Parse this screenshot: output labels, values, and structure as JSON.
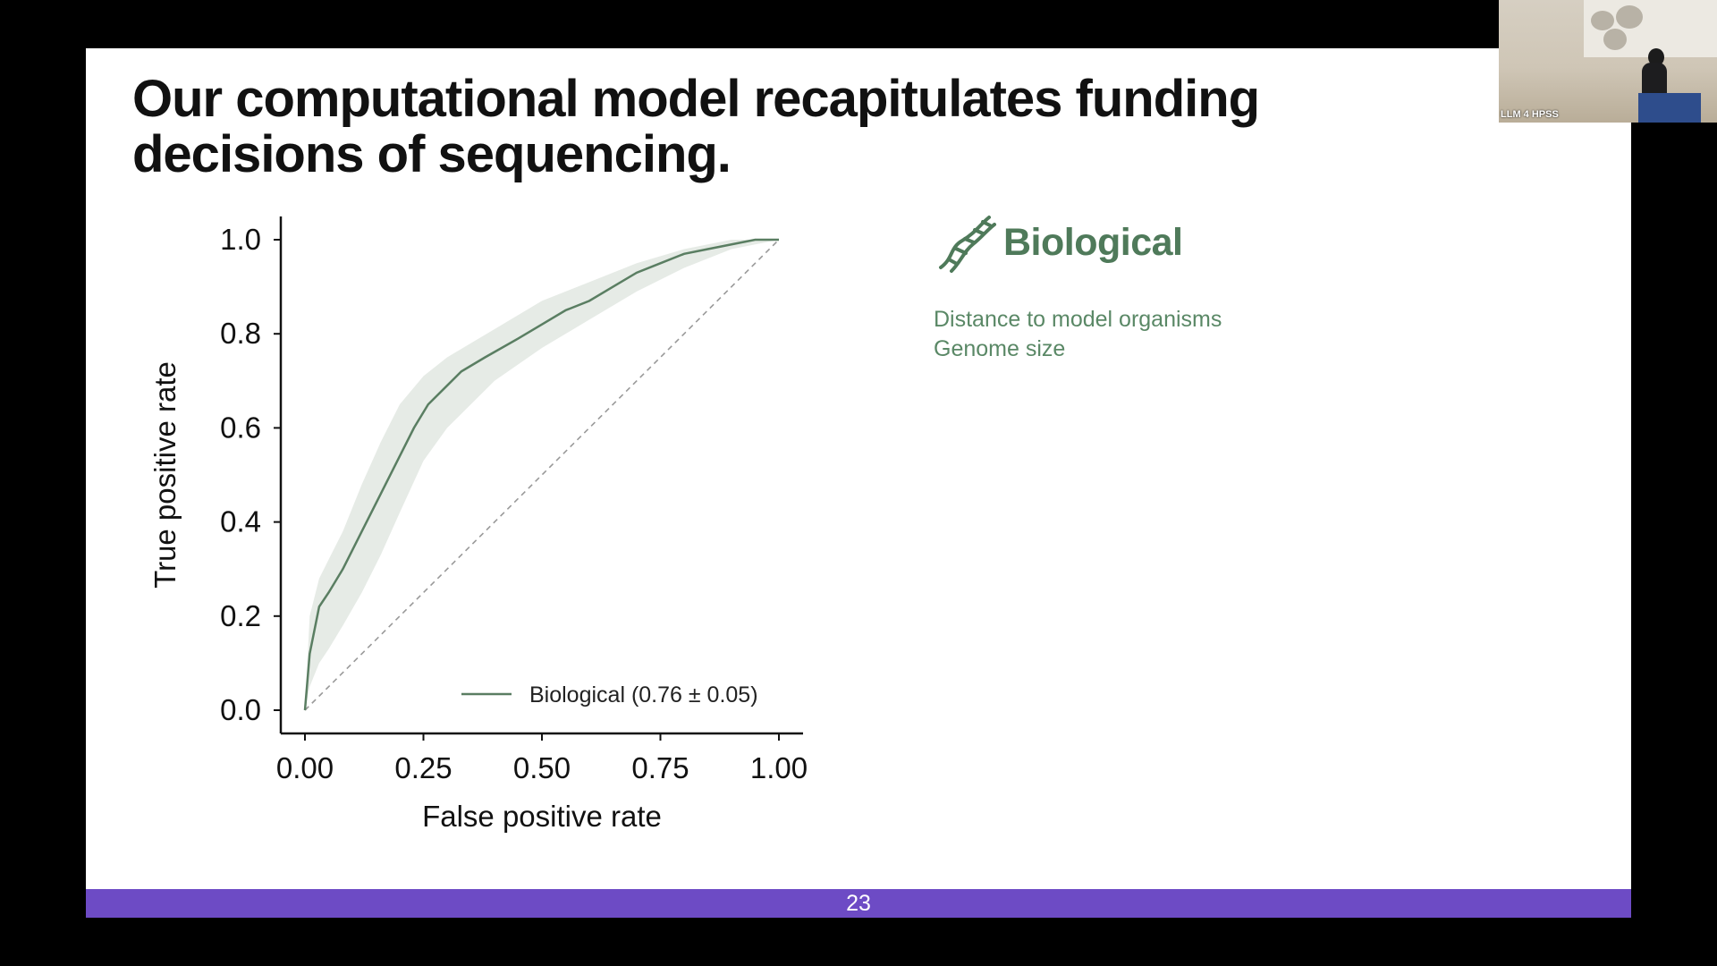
{
  "slide": {
    "title": "Our computational model recapitulates funding decisions of sequencing.",
    "page_number": "23"
  },
  "biological_panel": {
    "icon": "dna-icon",
    "title": "Biological",
    "features": [
      "Distance to model organisms",
      "Genome size"
    ]
  },
  "video_overlay": {
    "label": "LLM 4 HPSS"
  },
  "colors": {
    "accent_bar": "#6d4bc5",
    "curve": "#5a7e62",
    "band": "#e6ebe6",
    "biological_text": "#4f7a5a"
  },
  "chart_data": {
    "type": "line",
    "title": "",
    "xlabel": "False positive rate",
    "ylabel": "True positive rate",
    "xlim": [
      0,
      1
    ],
    "ylim": [
      0,
      1
    ],
    "x_ticks": [
      "0.00",
      "0.25",
      "0.50",
      "0.75",
      "1.00"
    ],
    "y_ticks": [
      "0.0",
      "0.2",
      "0.4",
      "0.6",
      "0.8",
      "1.0"
    ],
    "legend": {
      "placement": "bottom-right"
    },
    "series": [
      {
        "name": "Biological (0.76 ± 0.05)",
        "points": [
          [
            0.0,
            0.0
          ],
          [
            0.01,
            0.12
          ],
          [
            0.02,
            0.17
          ],
          [
            0.03,
            0.22
          ],
          [
            0.05,
            0.25
          ],
          [
            0.08,
            0.3
          ],
          [
            0.12,
            0.38
          ],
          [
            0.16,
            0.46
          ],
          [
            0.2,
            0.54
          ],
          [
            0.23,
            0.6
          ],
          [
            0.26,
            0.65
          ],
          [
            0.3,
            0.69
          ],
          [
            0.33,
            0.72
          ],
          [
            0.38,
            0.75
          ],
          [
            0.45,
            0.79
          ],
          [
            0.5,
            0.82
          ],
          [
            0.55,
            0.85
          ],
          [
            0.6,
            0.87
          ],
          [
            0.65,
            0.9
          ],
          [
            0.7,
            0.93
          ],
          [
            0.75,
            0.95
          ],
          [
            0.8,
            0.97
          ],
          [
            0.85,
            0.98
          ],
          [
            0.9,
            0.99
          ],
          [
            0.95,
            1.0
          ],
          [
            1.0,
            1.0
          ]
        ],
        "band": {
          "upper": [
            [
              0.0,
              0.0
            ],
            [
              0.01,
              0.2
            ],
            [
              0.03,
              0.28
            ],
            [
              0.05,
              0.32
            ],
            [
              0.08,
              0.38
            ],
            [
              0.12,
              0.48
            ],
            [
              0.16,
              0.57
            ],
            [
              0.2,
              0.65
            ],
            [
              0.25,
              0.71
            ],
            [
              0.3,
              0.75
            ],
            [
              0.4,
              0.81
            ],
            [
              0.5,
              0.87
            ],
            [
              0.6,
              0.91
            ],
            [
              0.7,
              0.95
            ],
            [
              0.8,
              0.98
            ],
            [
              0.9,
              1.0
            ],
            [
              1.0,
              1.0
            ]
          ],
          "lower": [
            [
              0.0,
              0.0
            ],
            [
              0.01,
              0.05
            ],
            [
              0.03,
              0.1
            ],
            [
              0.05,
              0.13
            ],
            [
              0.08,
              0.18
            ],
            [
              0.12,
              0.25
            ],
            [
              0.16,
              0.33
            ],
            [
              0.2,
              0.42
            ],
            [
              0.25,
              0.53
            ],
            [
              0.3,
              0.6
            ],
            [
              0.4,
              0.7
            ],
            [
              0.5,
              0.77
            ],
            [
              0.6,
              0.83
            ],
            [
              0.7,
              0.89
            ],
            [
              0.8,
              0.94
            ],
            [
              0.9,
              0.98
            ],
            [
              1.0,
              1.0
            ]
          ]
        }
      }
    ],
    "reference_line": {
      "style": "dashed",
      "points": [
        [
          0,
          0
        ],
        [
          1,
          1
        ]
      ]
    }
  }
}
